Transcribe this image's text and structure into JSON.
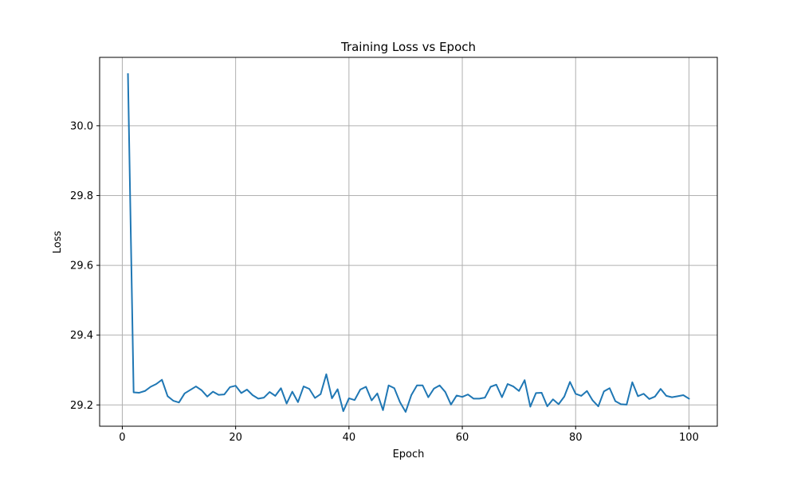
{
  "chart_data": {
    "type": "line",
    "title": "Training Loss vs Epoch",
    "xlabel": "Epoch",
    "ylabel": "Loss",
    "xlim": [
      -4,
      105
    ],
    "ylim": [
      29.139,
      30.196
    ],
    "xticks": [
      0,
      20,
      40,
      60,
      80,
      100
    ],
    "xtick_labels": [
      "0",
      "20",
      "40",
      "60",
      "80",
      "100"
    ],
    "yticks": [
      29.2,
      29.4,
      29.6,
      29.8,
      30.0
    ],
    "ytick_labels": [
      "29.2",
      "29.4",
      "29.6",
      "29.8",
      "30.0"
    ],
    "grid": true,
    "legend": "none",
    "line_color": "#1f77b4",
    "grid_color": "#b0b0b0",
    "series": [
      {
        "x": [
          1,
          2,
          3,
          4,
          5,
          6,
          7,
          8,
          9,
          10,
          11,
          12,
          13,
          14,
          15,
          16,
          17,
          18,
          19,
          20,
          21,
          22,
          23,
          24,
          25,
          26,
          27,
          28,
          29,
          30,
          31,
          32,
          33,
          34,
          35,
          36,
          37,
          38,
          39,
          40,
          41,
          42,
          43,
          44,
          45,
          46,
          47,
          48,
          49,
          50,
          51,
          52,
          53,
          54,
          55,
          56,
          57,
          58,
          59,
          60,
          61,
          62,
          63,
          64,
          65,
          66,
          67,
          68,
          69,
          70,
          71,
          72,
          73,
          74,
          75,
          76,
          77,
          78,
          79,
          80,
          81,
          82,
          83,
          84,
          85,
          86,
          87,
          88,
          89,
          90,
          91,
          92,
          93,
          94,
          95,
          96,
          97,
          98,
          99,
          100
        ],
        "values": [
          30.148,
          29.236,
          29.235,
          29.24,
          29.252,
          29.26,
          29.272,
          29.225,
          29.212,
          29.207,
          29.233,
          29.243,
          29.253,
          29.242,
          29.224,
          29.238,
          29.229,
          29.23,
          29.251,
          29.255,
          29.234,
          29.244,
          29.228,
          29.218,
          29.221,
          29.237,
          29.226,
          29.248,
          29.204,
          29.238,
          29.208,
          29.253,
          29.246,
          29.22,
          29.231,
          29.288,
          29.219,
          29.245,
          29.182,
          29.219,
          29.214,
          29.244,
          29.252,
          29.213,
          29.233,
          29.185,
          29.256,
          29.248,
          29.208,
          29.18,
          29.228,
          29.256,
          29.256,
          29.222,
          29.247,
          29.256,
          29.237,
          29.201,
          29.227,
          29.223,
          29.23,
          29.218,
          29.218,
          29.221,
          29.252,
          29.258,
          29.222,
          29.26,
          29.253,
          29.24,
          29.271,
          29.195,
          29.234,
          29.235,
          29.196,
          29.216,
          29.202,
          29.224,
          29.266,
          29.232,
          29.226,
          29.24,
          29.213,
          29.196,
          29.239,
          29.248,
          29.211,
          29.202,
          29.201,
          29.265,
          29.225,
          29.232,
          29.217,
          29.224,
          29.246,
          29.226,
          29.222,
          29.225,
          29.228,
          29.218
        ]
      }
    ]
  }
}
